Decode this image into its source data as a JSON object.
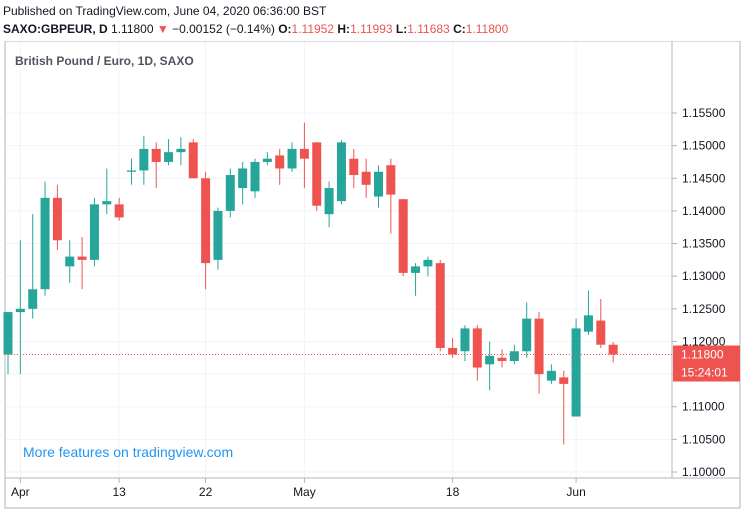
{
  "header": {
    "published": "Published on TradingView.com, June 04, 2020 06:36:00 BST",
    "symbol": "SAXO:GBPEUR, D",
    "last": "1.11800",
    "change_arrow": "▼",
    "change": "−0.00152 (−0.14%)",
    "open_label": "O:",
    "open": "1.11952",
    "high_label": "H:",
    "high": "1.11993",
    "low_label": "L:",
    "low": "1.11683",
    "close_label": "C:",
    "close": "1.11800"
  },
  "promo_text": "More features on tradingview.com",
  "colors": {
    "up": "#26a69a",
    "down": "#ef5350",
    "grid": "#f0f3fa",
    "axis": "#b2b5be",
    "promo": "#2196f3"
  },
  "chart_data": {
    "type": "candlestick",
    "title": "British Pound / Euro, 1D, SAXO",
    "ylim": [
      1.1,
      1.156
    ],
    "yticks": [
      "1.15500",
      "1.15000",
      "1.14500",
      "1.14000",
      "1.13500",
      "1.13000",
      "1.12500",
      "1.12000",
      "1.11500",
      "1.11000",
      "1.10500",
      "1.10000"
    ],
    "xticks": [
      {
        "label": "Apr",
        "index": 1
      },
      {
        "label": "13",
        "index": 9
      },
      {
        "label": "22",
        "index": 16
      },
      {
        "label": "May",
        "index": 24
      },
      {
        "label": "18",
        "index": 36
      },
      {
        "label": "Jun",
        "index": 46
      }
    ],
    "last_price": "1.11800",
    "countdown": "15:24:01",
    "candles": [
      {
        "o": 1.118,
        "h": 1.1245,
        "l": 1.115,
        "c": 1.1245
      },
      {
        "o": 1.1245,
        "h": 1.1355,
        "l": 1.115,
        "c": 1.125
      },
      {
        "o": 1.125,
        "h": 1.1395,
        "l": 1.1235,
        "c": 1.128
      },
      {
        "o": 1.128,
        "h": 1.1445,
        "l": 1.127,
        "c": 1.142
      },
      {
        "o": 1.142,
        "h": 1.144,
        "l": 1.134,
        "c": 1.1355
      },
      {
        "o": 1.1315,
        "h": 1.1355,
        "l": 1.129,
        "c": 1.133
      },
      {
        "o": 1.133,
        "h": 1.136,
        "l": 1.128,
        "c": 1.1325
      },
      {
        "o": 1.1325,
        "h": 1.142,
        "l": 1.1315,
        "c": 1.141
      },
      {
        "o": 1.141,
        "h": 1.1465,
        "l": 1.1395,
        "c": 1.1415
      },
      {
        "o": 1.141,
        "h": 1.142,
        "l": 1.1385,
        "c": 1.139
      },
      {
        "o": 1.146,
        "h": 1.148,
        "l": 1.144,
        "c": 1.1462
      },
      {
        "o": 1.1462,
        "h": 1.1515,
        "l": 1.144,
        "c": 1.1495
      },
      {
        "o": 1.1495,
        "h": 1.1505,
        "l": 1.1435,
        "c": 1.1475
      },
      {
        "o": 1.1475,
        "h": 1.151,
        "l": 1.147,
        "c": 1.149
      },
      {
        "o": 1.149,
        "h": 1.1513,
        "l": 1.147,
        "c": 1.1495
      },
      {
        "o": 1.1505,
        "h": 1.151,
        "l": 1.1455,
        "c": 1.145
      },
      {
        "o": 1.145,
        "h": 1.146,
        "l": 1.128,
        "c": 1.132
      },
      {
        "o": 1.1325,
        "h": 1.1405,
        "l": 1.131,
        "c": 1.14
      },
      {
        "o": 1.14,
        "h": 1.1465,
        "l": 1.139,
        "c": 1.1455
      },
      {
        "o": 1.1435,
        "h": 1.1475,
        "l": 1.141,
        "c": 1.1465
      },
      {
        "o": 1.143,
        "h": 1.148,
        "l": 1.142,
        "c": 1.1475
      },
      {
        "o": 1.1475,
        "h": 1.149,
        "l": 1.147,
        "c": 1.148
      },
      {
        "o": 1.1485,
        "h": 1.1495,
        "l": 1.144,
        "c": 1.1465
      },
      {
        "o": 1.1465,
        "h": 1.1505,
        "l": 1.146,
        "c": 1.1495
      },
      {
        "o": 1.1495,
        "h": 1.1535,
        "l": 1.1435,
        "c": 1.148
      },
      {
        "o": 1.1505,
        "h": 1.1505,
        "l": 1.14,
        "c": 1.1408
      },
      {
        "o": 1.1395,
        "h": 1.1445,
        "l": 1.1375,
        "c": 1.1435
      },
      {
        "o": 1.1415,
        "h": 1.1508,
        "l": 1.141,
        "c": 1.1505
      },
      {
        "o": 1.148,
        "h": 1.1495,
        "l": 1.1435,
        "c": 1.1455
      },
      {
        "o": 1.146,
        "h": 1.148,
        "l": 1.142,
        "c": 1.144
      },
      {
        "o": 1.1422,
        "h": 1.147,
        "l": 1.1405,
        "c": 1.146
      },
      {
        "o": 1.147,
        "h": 1.148,
        "l": 1.1365,
        "c": 1.1425
      },
      {
        "o": 1.1418,
        "h": 1.1418,
        "l": 1.13,
        "c": 1.1305
      },
      {
        "o": 1.1305,
        "h": 1.132,
        "l": 1.127,
        "c": 1.1315
      },
      {
        "o": 1.1315,
        "h": 1.133,
        "l": 1.13,
        "c": 1.1325
      },
      {
        "o": 1.132,
        "h": 1.1325,
        "l": 1.1185,
        "c": 1.119
      },
      {
        "o": 1.119,
        "h": 1.1205,
        "l": 1.1175,
        "c": 1.118
      },
      {
        "o": 1.1185,
        "h": 1.1225,
        "l": 1.117,
        "c": 1.122
      },
      {
        "o": 1.122,
        "h": 1.1225,
        "l": 1.114,
        "c": 1.116
      },
      {
        "o": 1.1165,
        "h": 1.12,
        "l": 1.1125,
        "c": 1.1178
      },
      {
        "o": 1.1175,
        "h": 1.1188,
        "l": 1.116,
        "c": 1.117
      },
      {
        "o": 1.117,
        "h": 1.1195,
        "l": 1.1165,
        "c": 1.1185
      },
      {
        "o": 1.1185,
        "h": 1.126,
        "l": 1.1175,
        "c": 1.1235
      },
      {
        "o": 1.1235,
        "h": 1.1245,
        "l": 1.112,
        "c": 1.115
      },
      {
        "o": 1.114,
        "h": 1.1165,
        "l": 1.1135,
        "c": 1.1155
      },
      {
        "o": 1.1145,
        "h": 1.1155,
        "l": 1.1042,
        "c": 1.1135
      },
      {
        "o": 1.1085,
        "h": 1.1235,
        "l": 1.1085,
        "c": 1.122
      },
      {
        "o": 1.1215,
        "h": 1.1278,
        "l": 1.121,
        "c": 1.124
      },
      {
        "o": 1.1232,
        "h": 1.1265,
        "l": 1.119,
        "c": 1.1195
      },
      {
        "o": 1.1195,
        "h": 1.1199,
        "l": 1.1168,
        "c": 1.118
      }
    ]
  }
}
